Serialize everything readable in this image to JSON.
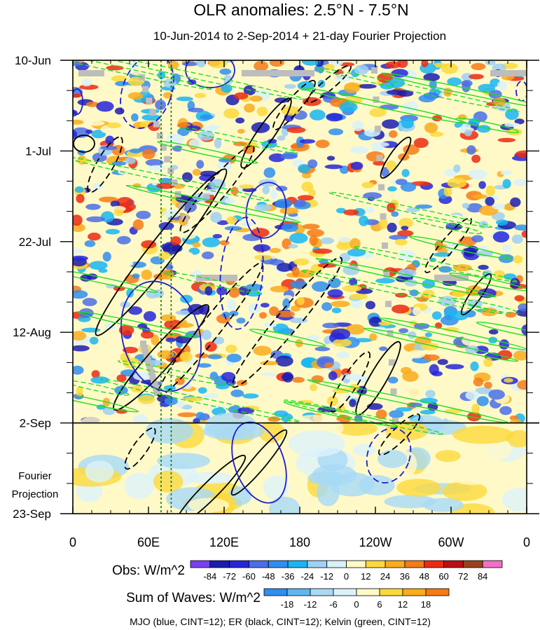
{
  "chart_data": {
    "type": "heatmap",
    "title": "OLR anomalies: 2.5°N - 7.5°N",
    "subtitle": "10-Jun-2014 to 2-Sep-2014 + 21-day Fourier Projection",
    "x_ticks": [
      {
        "lon": 0,
        "label": "0"
      },
      {
        "lon": 60,
        "label": "60E"
      },
      {
        "lon": 120,
        "label": "120E"
      },
      {
        "lon": 180,
        "label": "180"
      },
      {
        "lon": 240,
        "label": "120W"
      },
      {
        "lon": 300,
        "label": "60W"
      },
      {
        "lon": 360,
        "label": "0"
      }
    ],
    "xlim": [
      0,
      360
    ],
    "time_ticks": [
      {
        "day": 0,
        "label": "10-Jun"
      },
      {
        "day": 21,
        "label": "1-Jul"
      },
      {
        "day": 42,
        "label": "22-Jul"
      },
      {
        "day": 63,
        "label": "12-Aug"
      },
      {
        "day": 84,
        "label": "2-Sep"
      },
      {
        "day": 105,
        "label": "23-Sep"
      }
    ],
    "time_range_days": [
      0,
      105
    ],
    "observed_end_day": 84,
    "projection_label_lines": [
      "Fourier",
      "Projection"
    ],
    "reference_lines_lon": [
      70,
      78
    ],
    "obs_colorbar": {
      "label": "Obs: W/m^2",
      "levels": [
        -84,
        -72,
        -60,
        -48,
        -36,
        -24,
        -12,
        0,
        12,
        24,
        36,
        48,
        60,
        72,
        84
      ],
      "colors": [
        "#7b3ff2",
        "#1c1cb0",
        "#2626d9",
        "#4a6ee8",
        "#2f8ef0",
        "#19b5f2",
        "#9fd0f5",
        "#d9f2fa",
        "#fff9c8",
        "#fcd93b",
        "#f9ac1c",
        "#f47b16",
        "#ec2a12",
        "#b80f12",
        "#97421e",
        "#f26fc6"
      ]
    },
    "waves_colorbar": {
      "label": "Sum of Waves: W/m^2",
      "levels": [
        -18,
        -12,
        -6,
        0,
        6,
        12,
        18
      ],
      "colors": [
        "#2f8ef0",
        "#5fb6f0",
        "#a8daf6",
        "#dcf2fb",
        "#fff9c8",
        "#fcd93b",
        "#f9ac1c",
        "#f47b16"
      ]
    },
    "contour_legend": "MJO (blue, CINT=12); ER (black, CINT=12); Kelvin (green, CINT=12)",
    "contour_colors": {
      "mjo": "#1c1cd0",
      "er": "#000000",
      "kelvin": "#22dd22"
    },
    "missing_color": "#bdbdbd",
    "obs_field_colors": [
      "#9fd0f5",
      "#d9f2fa",
      "#fff9c8",
      "#fcd93b",
      "#f9ac1c",
      "#f47b16",
      "#ec2a12",
      "#2f8ef0",
      "#19b5f2",
      "#4a6ee8",
      "#2626d9",
      "#1c1cb0"
    ],
    "proj_field_colors": [
      "#dcf2fb",
      "#fff9c8",
      "#a8daf6",
      "#fcd93b"
    ]
  }
}
